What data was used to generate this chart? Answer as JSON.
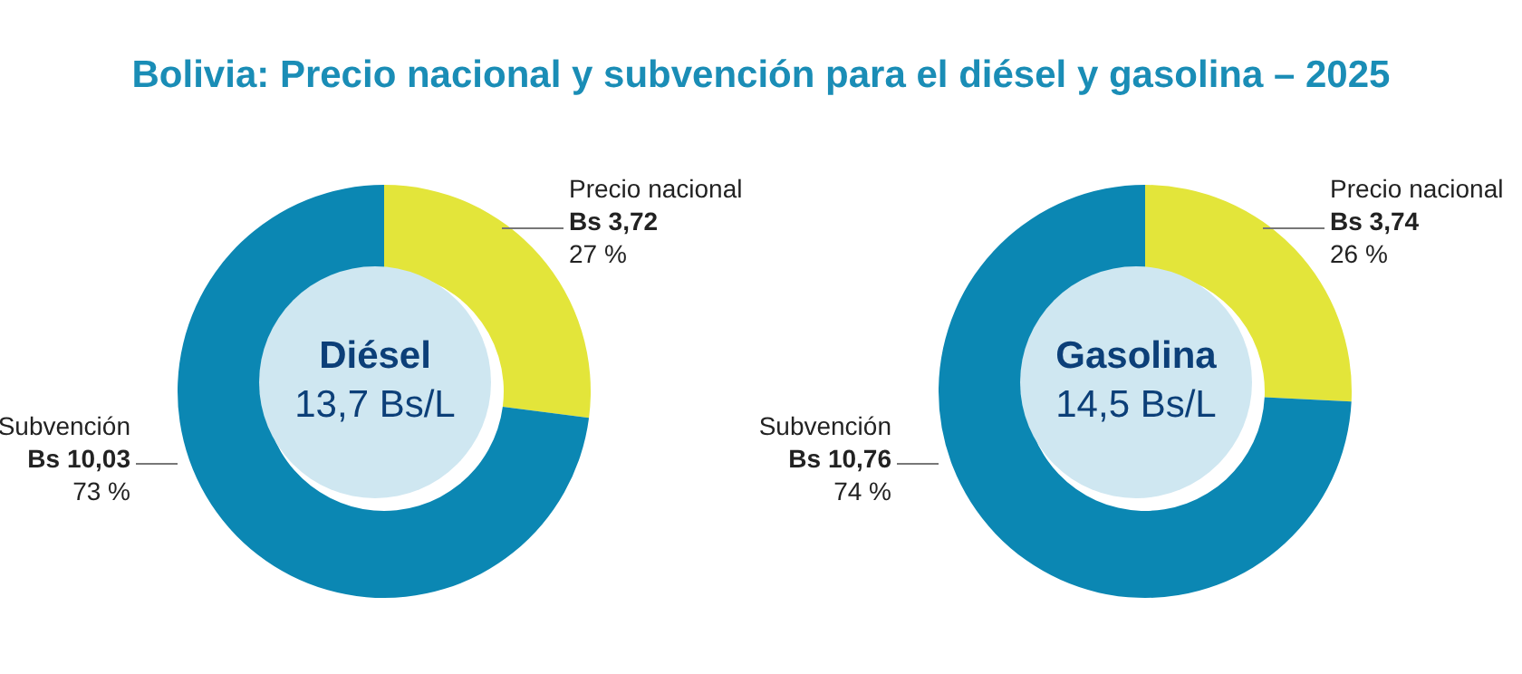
{
  "chart_data": [
    {
      "type": "donut",
      "title": "Bolivia: Precio nacional y subvención para el diésel y gasolina – 2025",
      "subtitle": "Diésel",
      "categories": [
        "Precio nacional",
        "Subvención"
      ],
      "values": [
        3.72,
        10.03
      ],
      "colors": [
        "#e3e53a",
        "#0b87b3"
      ],
      "value_labels": [
        "Bs 3,72",
        "Bs 10,03"
      ],
      "annotations": [
        "13,7 Bs/L",
        {
          "text": "27 %",
          "x": "Precio nacional"
        },
        {
          "text": "73 %",
          "x": "Subvención"
        }
      ]
    },
    {
      "type": "donut",
      "subtitle": "Gasolina",
      "categories": [
        "Precio nacional",
        "Subvención"
      ],
      "values": [
        3.74,
        10.76
      ],
      "colors": [
        "#e3e53a",
        "#0b87b3"
      ],
      "value_labels": [
        "Bs 3,74",
        "Bs 10,76"
      ],
      "annotations": [
        "14,5 Bs/L",
        {
          "text": "26 %",
          "x": "Precio nacional"
        },
        {
          "text": "74 %",
          "x": "Subvención"
        }
      ]
    }
  ]
}
